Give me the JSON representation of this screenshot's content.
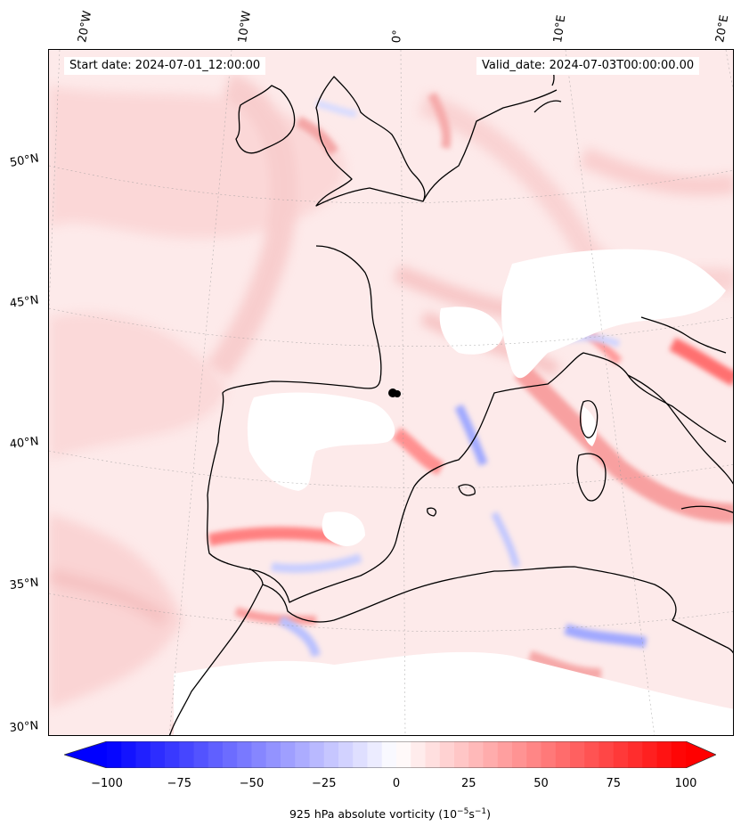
{
  "header": {
    "start_date": "Start date: 2024-07-01_12:00:00",
    "valid_date": "Valid_date: 2024-07-03T00:00:00.00"
  },
  "longitude_labels": [
    "20°W",
    "10°W",
    "0°",
    "10°E",
    "20°E"
  ],
  "latitude_labels": [
    "50°N",
    "45°N",
    "40°N",
    "35°N",
    "30°N"
  ],
  "colorbar": {
    "ticks": [
      "−100",
      "−75",
      "−50",
      "−25",
      "0",
      "25",
      "50",
      "75",
      "100"
    ],
    "label_prefix": "925 hPa absolute vorticity (10",
    "label_exp1": "−5",
    "label_mid": "s",
    "label_exp2": "−1",
    "label_suffix": ")",
    "min": -100,
    "max": 100
  },
  "colors": {
    "negative_max": "#0000ff",
    "positive_max": "#ff0000",
    "coastline": "#000000",
    "background_field": "#fdeaea"
  }
}
